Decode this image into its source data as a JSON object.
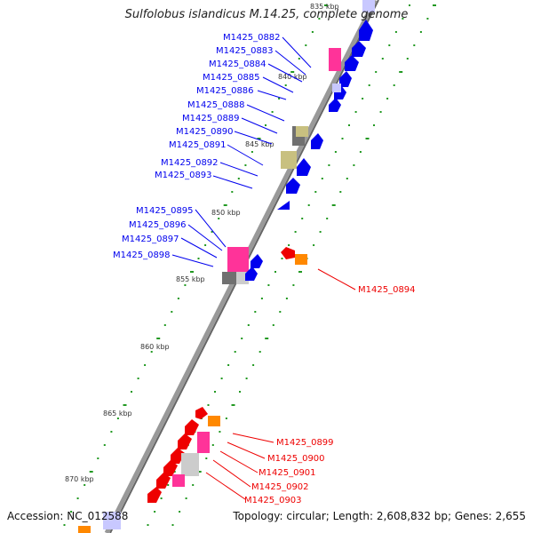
{
  "title": "Sulfolobus islandicus M.14.25, complete genome",
  "footer": {
    "accession": "Accession: NC_012588",
    "summary": "Topology: circular; Length: 2,608,832 bp; Genes: 2,655"
  },
  "colors": {
    "backbone": "#888888",
    "blue_gene": "#0000ee",
    "red_gene": "#ee0000",
    "pink_gene": "#ff3399",
    "orange_gene": "#ff8800",
    "gray_gene": "#707070",
    "khaki_gene": "#c8c080",
    "dots": "#229922"
  },
  "scale_labels": [
    "835 kbp",
    "840 kbp",
    "845 kbp",
    "850 kbp",
    "855 kbp",
    "860 kbp",
    "865 kbp",
    "870 kbp"
  ],
  "blue_labels": [
    "M1425_0882",
    "M1425_0883",
    "M1425_0884",
    "M1425_0885",
    "M1425_0886",
    "M1425_0888",
    "M1425_0889",
    "M1425_0890",
    "M1425_0891",
    "M1425_0892",
    "M1425_0893",
    "M1425_0895",
    "M1425_0896",
    "M1425_0897",
    "M1425_0898"
  ],
  "red_labels": [
    "M1425_0894",
    "M1425_0899",
    "M1425_0900",
    "M1425_0901",
    "M1425_0902",
    "M1425_0903"
  ]
}
